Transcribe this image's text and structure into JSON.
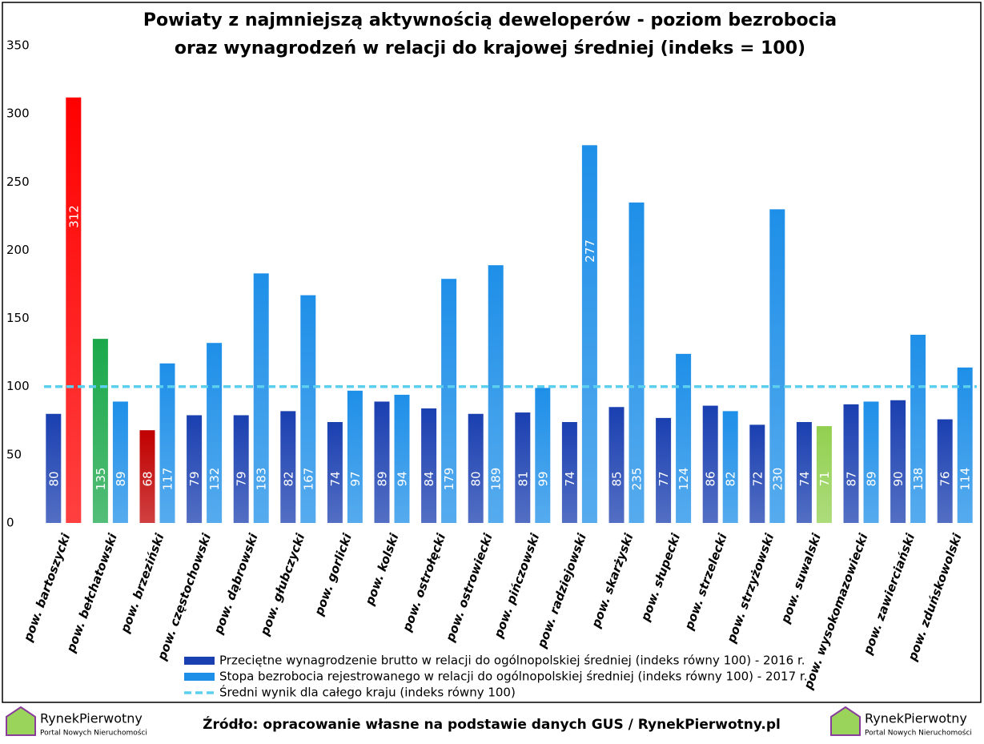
{
  "chart_data": {
    "type": "bar",
    "title": [
      "Powiaty z najmniejszą aktywnością deweloperów - poziom bezrobocia",
      "oraz wynagrodzeń w relacji do krajowej średniej (indeks = 100)"
    ],
    "categories": [
      "pow. bartoszycki",
      "pow. bełchatowski",
      "pow. brzeziński",
      "pow. częstochowski",
      "pow. dąbrowski",
      "pow. głubczycki",
      "pow. gorlicki",
      "pow. kolski",
      "pow. ostrołęcki",
      "pow. ostrowiecki",
      "pow. pińczowski",
      "pow. radziejowski",
      "pow. skarżyski",
      "pow. słupecki",
      "pow. strzelecki",
      "pow. strzyżowski",
      "pow. suwalski",
      "pow. wysokomazowiecki",
      "pow. zawierciański",
      "pow. zduńskowolski"
    ],
    "series": [
      {
        "name": "Przeciętne wynagrodzenie brutto w relacji do ogólnopolskiej średniej (indeks równy 100) - 2016 r.",
        "color": "#1a3fb0",
        "values": [
          80,
          135,
          68,
          79,
          79,
          82,
          74,
          89,
          84,
          80,
          81,
          74,
          85,
          77,
          86,
          72,
          74,
          87,
          90,
          76
        ],
        "colors": [
          "#1a3fb0",
          "#1aa84a",
          "#c00000",
          "#1a3fb0",
          "#1a3fb0",
          "#1a3fb0",
          "#1a3fb0",
          "#1a3fb0",
          "#1a3fb0",
          "#1a3fb0",
          "#1a3fb0",
          "#1a3fb0",
          "#1a3fb0",
          "#1a3fb0",
          "#1a3fb0",
          "#1a3fb0",
          "#1a3fb0",
          "#1a3fb0",
          "#1a3fb0",
          "#1a3fb0"
        ]
      },
      {
        "name": "Stopa bezrobocia rejestrowanego w relacji do ogólnopolskiej średniej (indeks równy 100) - 2017 r.",
        "color": "#1e8fe8",
        "values": [
          312,
          89,
          117,
          132,
          183,
          167,
          97,
          94,
          179,
          189,
          99,
          277,
          235,
          124,
          82,
          230,
          71,
          89,
          138,
          114
        ],
        "colors": [
          "#ff0000",
          "#1e8fe8",
          "#1e8fe8",
          "#1e8fe8",
          "#1e8fe8",
          "#1e8fe8",
          "#1e8fe8",
          "#1e8fe8",
          "#1e8fe8",
          "#1e8fe8",
          "#1e8fe8",
          "#1e8fe8",
          "#1e8fe8",
          "#1e8fe8",
          "#1e8fe8",
          "#1e8fe8",
          "#92d050",
          "#1e8fe8",
          "#1e8fe8",
          "#1e8fe8"
        ]
      }
    ],
    "reference": {
      "name": "Średni wynik dla całego kraju (indeks równy 100)",
      "value": 100,
      "color": "#5ccfee"
    },
    "ylim": [
      0,
      350
    ],
    "yticks": [
      0,
      50,
      100,
      150,
      200,
      250,
      300,
      350
    ],
    "grid": false
  },
  "footer": {
    "source": "Źródło: opracowanie własne na podstawie danych GUS / RynekPierwotny.pl",
    "logo_name": "RynekPierwotny",
    "logo_tagline": "Portal Nowych Nieruchomości"
  }
}
